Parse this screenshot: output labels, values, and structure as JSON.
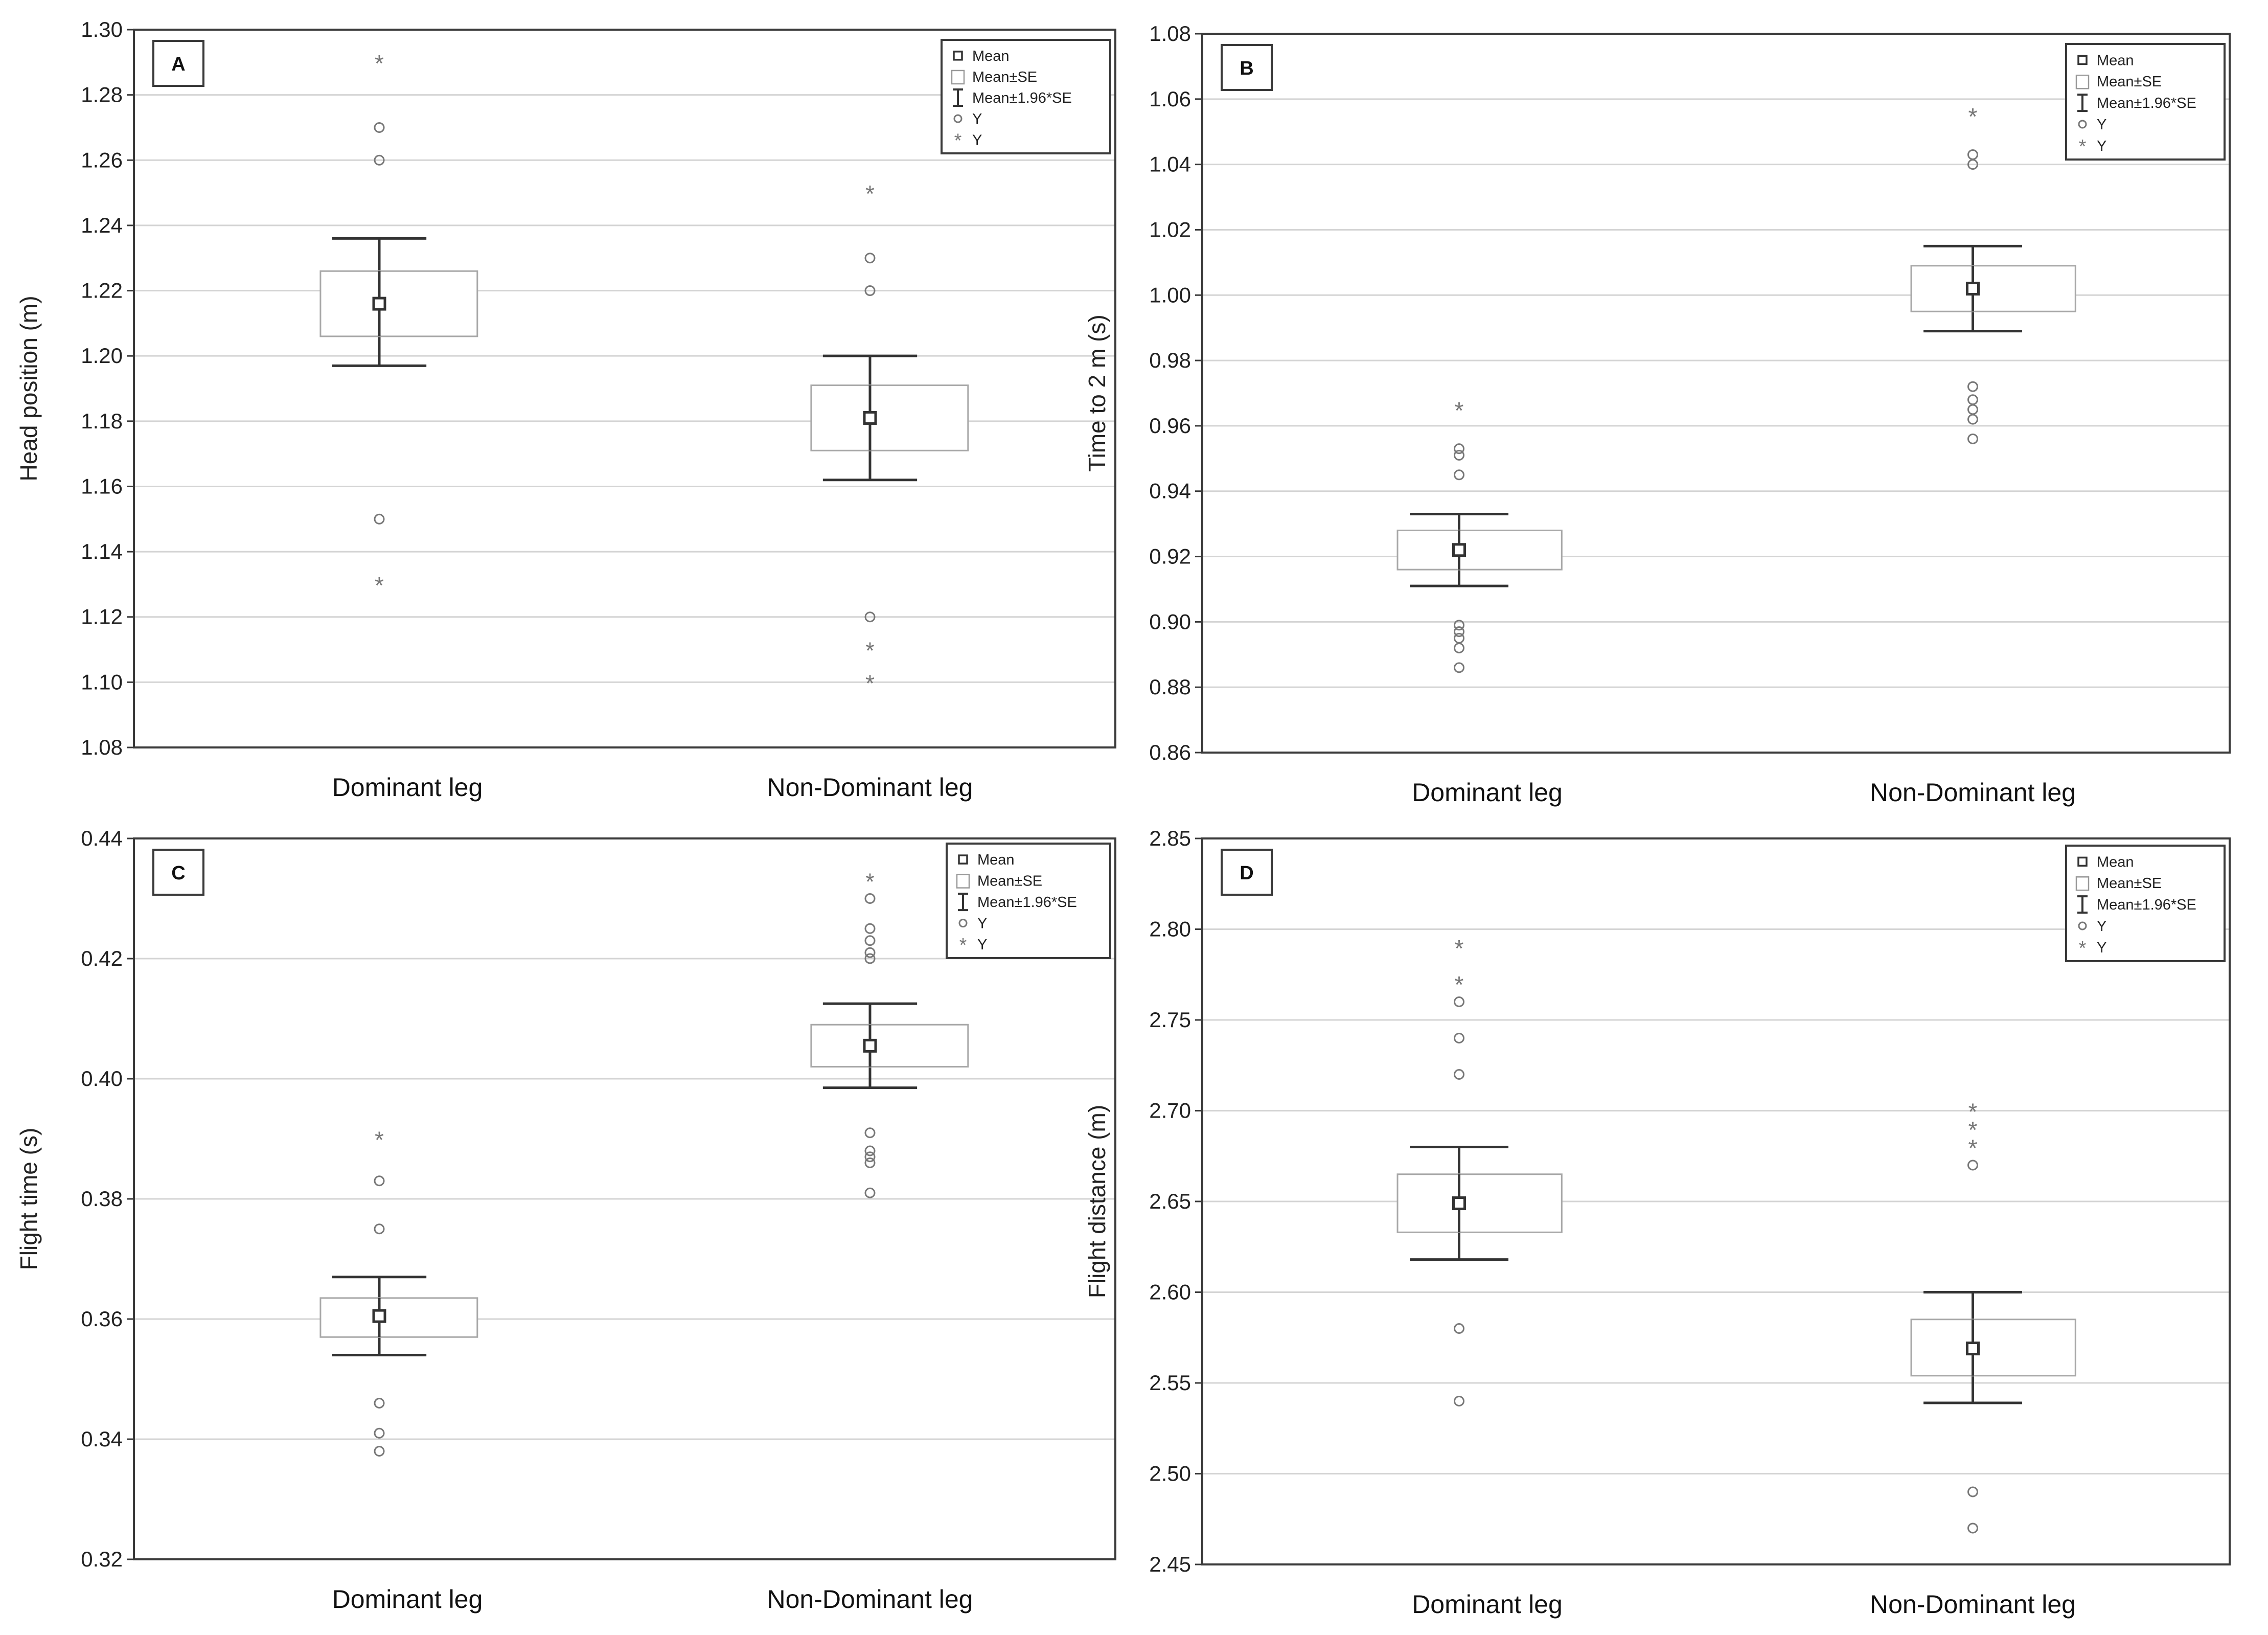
{
  "figure": {
    "style": {
      "grid": "#d4d4d4",
      "frame": "#3a3a3a",
      "mark": "#333333",
      "outlier": "#777777"
    },
    "legend": {
      "mean": "Mean",
      "se": "Mean±SE",
      "ci": "Mean±1.96*SE",
      "outlier": "Y",
      "extreme": "Y"
    }
  },
  "chart_data": [
    {
      "type": "box-whisker",
      "panel_label": "A",
      "title": "",
      "xlabel": "",
      "ylabel": "Head position (m)",
      "ylim": [
        1.08,
        1.3
      ],
      "yticks": [
        "1.08",
        "1.10",
        "1.12",
        "1.14",
        "1.16",
        "1.18",
        "1.20",
        "1.22",
        "1.24",
        "1.26",
        "1.28",
        "1.30"
      ],
      "grid": true,
      "legend_position": "top-right",
      "categories": [
        "Dominant leg",
        "Non-Dominant leg"
      ],
      "groups": [
        {
          "name": "Dominant leg",
          "mean": 1.216,
          "se_low": 1.206,
          "se_high": 1.226,
          "ci_low": 1.197,
          "ci_high": 1.236,
          "outliers": [
            1.27,
            1.26,
            1.15
          ],
          "extremes": [
            1.29,
            1.13
          ]
        },
        {
          "name": "Non-Dominant leg",
          "mean": 1.181,
          "se_low": 1.171,
          "se_high": 1.191,
          "ci_low": 1.162,
          "ci_high": 1.2,
          "outliers": [
            1.23,
            1.22,
            1.12
          ],
          "extremes": [
            1.25,
            1.11,
            1.1
          ]
        }
      ]
    },
    {
      "type": "box-whisker",
      "panel_label": "B",
      "title": "",
      "xlabel": "",
      "ylabel": "Time to 2 m (s)",
      "ylim": [
        0.86,
        1.08
      ],
      "yticks": [
        "0.86",
        "0.88",
        "0.90",
        "0.92",
        "0.94",
        "0.96",
        "0.98",
        "1.00",
        "1.02",
        "1.04",
        "1.06",
        "1.08"
      ],
      "grid": true,
      "legend_position": "top-right",
      "categories": [
        "Dominant leg",
        "Non-Dominant leg"
      ],
      "groups": [
        {
          "name": "Dominant leg",
          "mean": 0.922,
          "se_low": 0.916,
          "se_high": 0.928,
          "ci_low": 0.911,
          "ci_high": 0.933,
          "outliers": [
            0.953,
            0.951,
            0.945,
            0.899,
            0.897,
            0.895,
            0.892,
            0.886
          ],
          "extremes": [
            0.965
          ]
        },
        {
          "name": "Non-Dominant leg",
          "mean": 1.002,
          "se_low": 0.995,
          "se_high": 1.009,
          "ci_low": 0.989,
          "ci_high": 1.015,
          "outliers": [
            1.043,
            1.04,
            0.972,
            0.968,
            0.965,
            0.962,
            0.956
          ],
          "extremes": [
            1.055
          ]
        }
      ]
    },
    {
      "type": "box-whisker",
      "panel_label": "C",
      "title": "",
      "xlabel": "",
      "ylabel": "Flight time (s)",
      "ylim": [
        0.32,
        0.44
      ],
      "yticks": [
        "0.32",
        "0.34",
        "0.36",
        "0.38",
        "0.40",
        "0.42",
        "0.44"
      ],
      "grid": true,
      "legend_position": "top-right",
      "categories": [
        "Dominant leg",
        "Non-Dominant leg"
      ],
      "groups": [
        {
          "name": "Dominant leg",
          "mean": 0.3605,
          "se_low": 0.357,
          "se_high": 0.3635,
          "ci_low": 0.354,
          "ci_high": 0.367,
          "outliers": [
            0.383,
            0.375,
            0.346,
            0.341,
            0.338
          ],
          "extremes": [
            0.39
          ]
        },
        {
          "name": "Non-Dominant leg",
          "mean": 0.4055,
          "se_low": 0.402,
          "se_high": 0.409,
          "ci_low": 0.3985,
          "ci_high": 0.4125,
          "outliers": [
            0.43,
            0.425,
            0.423,
            0.421,
            0.42,
            0.391,
            0.388,
            0.387,
            0.386,
            0.381
          ],
          "extremes": [
            0.433
          ]
        }
      ]
    },
    {
      "type": "box-whisker",
      "panel_label": "D",
      "title": "",
      "xlabel": "",
      "ylabel": "Flight distance (m)",
      "ylim": [
        2.45,
        2.85
      ],
      "yticks": [
        "2.45",
        "2.50",
        "2.55",
        "2.60",
        "2.65",
        "2.70",
        "2.75",
        "2.80",
        "2.85"
      ],
      "grid": true,
      "legend_position": "top-right",
      "categories": [
        "Dominant leg",
        "Non-Dominant leg"
      ],
      "groups": [
        {
          "name": "Dominant leg",
          "mean": 2.649,
          "se_low": 2.633,
          "se_high": 2.665,
          "ci_low": 2.618,
          "ci_high": 2.68,
          "outliers": [
            2.76,
            2.74,
            2.72,
            2.58,
            2.54
          ],
          "extremes": [
            2.79,
            2.77
          ]
        },
        {
          "name": "Non-Dominant leg",
          "mean": 2.569,
          "se_low": 2.554,
          "se_high": 2.585,
          "ci_low": 2.539,
          "ci_high": 2.6,
          "outliers": [
            2.67,
            2.49,
            2.47
          ],
          "extremes": [
            2.7,
            2.69,
            2.68
          ]
        }
      ]
    }
  ]
}
